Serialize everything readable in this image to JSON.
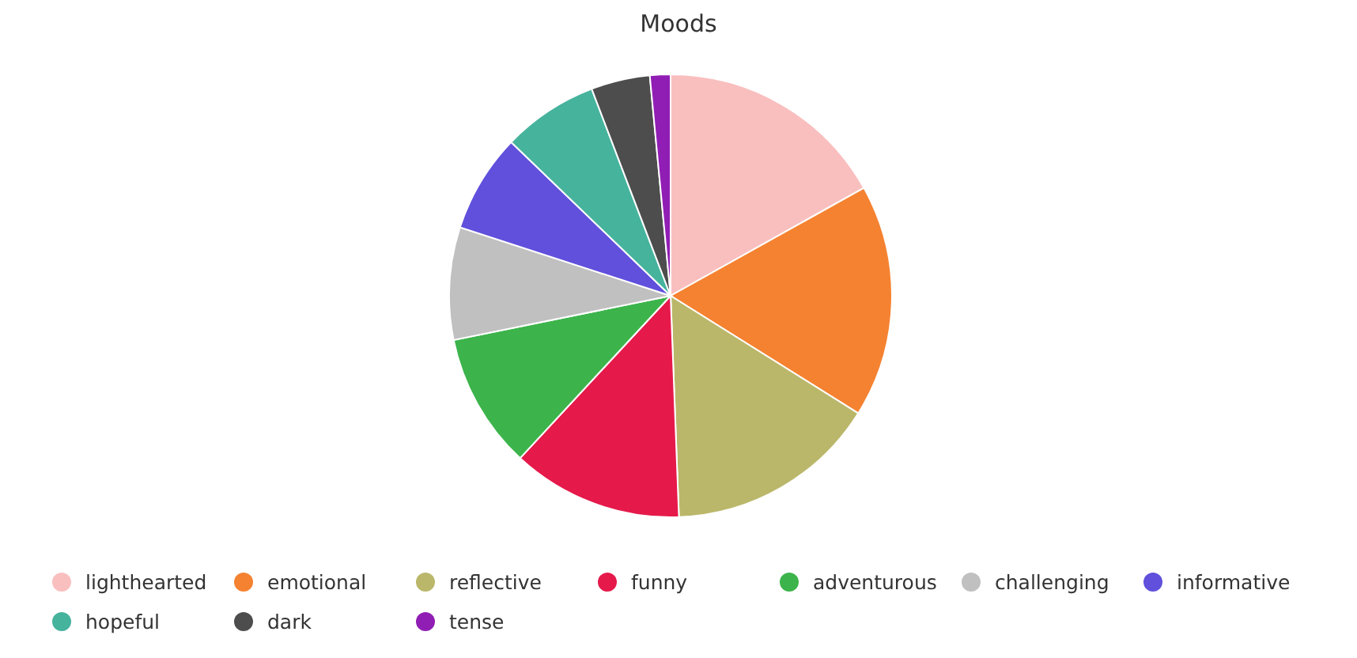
{
  "chart_data": {
    "type": "pie",
    "title": "Moods",
    "legend": "bottom",
    "categories": [
      "lighthearted",
      "emotional",
      "reflective",
      "funny",
      "adventurous",
      "challenging",
      "informative",
      "hopeful",
      "dark",
      "tense"
    ],
    "values": [
      16.9,
      17.0,
      15.5,
      12.5,
      9.9,
      8.2,
      7.2,
      7.0,
      4.3,
      1.5
    ],
    "colors": [
      "#f9bfbf",
      "#f58231",
      "#bab76a",
      "#e6194b",
      "#3cb44b",
      "#c0c0c0",
      "#6050dc",
      "#46b39d",
      "#4d4d4d",
      "#911eb4"
    ]
  }
}
